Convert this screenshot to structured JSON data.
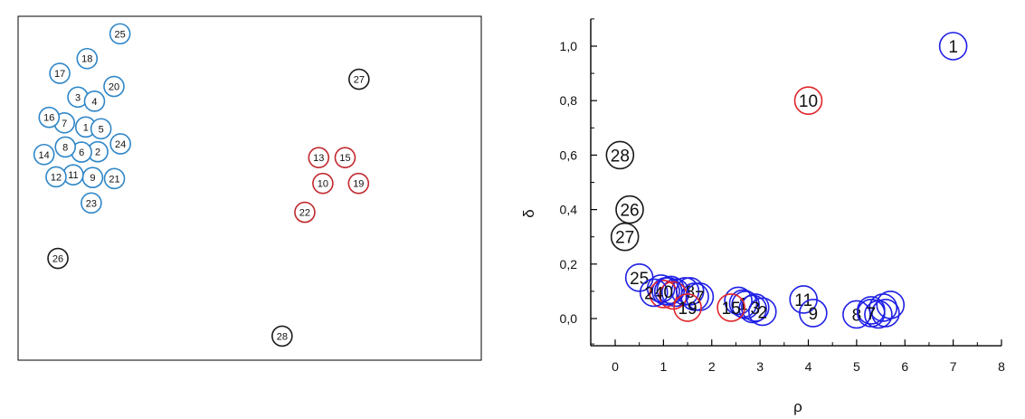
{
  "chart_data": [
    {
      "type": "scatter",
      "title": "",
      "xlabel": "",
      "ylabel": "",
      "grid": false,
      "legend": "none",
      "colors": {
        "blue": "#2e86c8",
        "red": "#c0282d",
        "black": "#1a1a1a"
      },
      "points": [
        {
          "label": "1",
          "x": 0.146,
          "y": 0.678,
          "cluster": "blue"
        },
        {
          "label": "2",
          "x": 0.172,
          "y": 0.606,
          "cluster": "blue"
        },
        {
          "label": "3",
          "x": 0.129,
          "y": 0.765,
          "cluster": "blue"
        },
        {
          "label": "4",
          "x": 0.165,
          "y": 0.753,
          "cluster": "blue"
        },
        {
          "label": "5",
          "x": 0.179,
          "y": 0.673,
          "cluster": "blue"
        },
        {
          "label": "6",
          "x": 0.137,
          "y": 0.605,
          "cluster": "blue"
        },
        {
          "label": "7",
          "x": 0.1,
          "y": 0.69,
          "cluster": "blue"
        },
        {
          "label": "8",
          "x": 0.102,
          "y": 0.62,
          "cluster": "blue"
        },
        {
          "label": "9",
          "x": 0.161,
          "y": 0.531,
          "cluster": "blue"
        },
        {
          "label": "10",
          "x": 0.658,
          "y": 0.514,
          "cluster": "red"
        },
        {
          "label": "11",
          "x": 0.119,
          "y": 0.539,
          "cluster": "blue"
        },
        {
          "label": "12",
          "x": 0.082,
          "y": 0.533,
          "cluster": "blue"
        },
        {
          "label": "13",
          "x": 0.649,
          "y": 0.589,
          "cluster": "red"
        },
        {
          "label": "14",
          "x": 0.056,
          "y": 0.598,
          "cluster": "blue"
        },
        {
          "label": "15",
          "x": 0.706,
          "y": 0.589,
          "cluster": "red"
        },
        {
          "label": "16",
          "x": 0.067,
          "y": 0.706,
          "cluster": "blue"
        },
        {
          "label": "17",
          "x": 0.09,
          "y": 0.834,
          "cluster": "blue"
        },
        {
          "label": "18",
          "x": 0.149,
          "y": 0.877,
          "cluster": "blue"
        },
        {
          "label": "19",
          "x": 0.735,
          "y": 0.514,
          "cluster": "red"
        },
        {
          "label": "20",
          "x": 0.207,
          "y": 0.796,
          "cluster": "blue"
        },
        {
          "label": "21",
          "x": 0.208,
          "y": 0.528,
          "cluster": "blue"
        },
        {
          "label": "22",
          "x": 0.619,
          "y": 0.43,
          "cluster": "red"
        },
        {
          "label": "23",
          "x": 0.158,
          "y": 0.457,
          "cluster": "blue"
        },
        {
          "label": "24",
          "x": 0.221,
          "y": 0.629,
          "cluster": "blue"
        },
        {
          "label": "25",
          "x": 0.22,
          "y": 0.949,
          "cluster": "blue"
        },
        {
          "label": "26",
          "x": 0.086,
          "y": 0.296,
          "cluster": "black"
        },
        {
          "label": "27",
          "x": 0.736,
          "y": 0.817,
          "cluster": "black"
        },
        {
          "label": "28",
          "x": 0.57,
          "y": 0.07,
          "cluster": "black"
        }
      ]
    },
    {
      "type": "scatter",
      "title": "",
      "xlabel": "ρ",
      "ylabel": "δ",
      "xlim": [
        -0.5,
        8
      ],
      "ylim": [
        -0.1,
        1.1
      ],
      "xticks": [
        "0",
        "1",
        "2",
        "3",
        "4",
        "5",
        "6",
        "7",
        "8"
      ],
      "xtick_values": [
        0,
        1,
        2,
        3,
        4,
        5,
        6,
        7,
        8
      ],
      "yticks": [
        "0,0",
        "0,2",
        "0,4",
        "0,6",
        "0,8",
        "1,0"
      ],
      "ytick_values": [
        0,
        0.2,
        0.4,
        0.6,
        0.8,
        1.0
      ],
      "grid": false,
      "legend": "none",
      "colors": {
        "blue": "#1f1fe6",
        "red": "#e0242a",
        "black": "#1a1a1a"
      },
      "points": [
        {
          "label": "",
          "x": 5.3,
          "y": 0.03,
          "cluster": "blue"
        },
        {
          "label": "",
          "x": 5.55,
          "y": 0.04,
          "cluster": "blue"
        },
        {
          "label": "",
          "x": 5.7,
          "y": 0.05,
          "cluster": "blue"
        },
        {
          "label": "",
          "x": 5.6,
          "y": 0.02,
          "cluster": "blue"
        },
        {
          "label": "",
          "x": 5.45,
          "y": 0.015,
          "cluster": "blue"
        },
        {
          "label": "",
          "x": 0.95,
          "y": 0.11,
          "cluster": "blue"
        },
        {
          "label": "",
          "x": 1.05,
          "y": 0.1,
          "cluster": "blue"
        },
        {
          "label": "",
          "x": 1.15,
          "y": 0.105,
          "cluster": "blue"
        },
        {
          "label": "",
          "x": 1.25,
          "y": 0.095,
          "cluster": "blue"
        },
        {
          "label": "",
          "x": 1.45,
          "y": 0.1,
          "cluster": "blue"
        },
        {
          "label": "",
          "x": 1.65,
          "y": 0.08,
          "cluster": "blue"
        },
        {
          "label": "",
          "x": 2.55,
          "y": 0.065,
          "cluster": "blue"
        },
        {
          "label": "",
          "x": 2.7,
          "y": 0.05,
          "cluster": "blue"
        },
        {
          "label": "",
          "x": 2.85,
          "y": 0.035,
          "cluster": "blue"
        },
        {
          "label": "",
          "x": 1.0,
          "y": 0.09,
          "cluster": "red"
        },
        {
          "label": "",
          "x": 1.2,
          "y": 0.085,
          "cluster": "red"
        },
        {
          "label": "25",
          "x": 0.5,
          "y": 0.15,
          "cluster": "blue"
        },
        {
          "label": "24",
          "x": 0.8,
          "y": 0.095,
          "cluster": "blue"
        },
        {
          "label": "0",
          "x": 1.1,
          "y": 0.1,
          "cluster": "blue"
        },
        {
          "label": "8",
          "x": 1.55,
          "y": 0.1,
          "cluster": "blue"
        },
        {
          "label": "7",
          "x": 1.75,
          "y": 0.08,
          "cluster": "blue"
        },
        {
          "label": "19",
          "x": 1.5,
          "y": 0.04,
          "cluster": "red"
        },
        {
          "label": "1",
          "x": 2.65,
          "y": 0.055,
          "cluster": "blue"
        },
        {
          "label": "3",
          "x": 2.9,
          "y": 0.04,
          "cluster": "blue"
        },
        {
          "label": "2",
          "x": 3.05,
          "y": 0.025,
          "cluster": "blue"
        },
        {
          "label": "15",
          "x": 2.4,
          "y": 0.04,
          "cluster": "red"
        },
        {
          "label": "11",
          "x": 3.9,
          "y": 0.07,
          "cluster": "blue"
        },
        {
          "label": "9",
          "x": 4.1,
          "y": 0.02,
          "cluster": "blue"
        },
        {
          "label": "8",
          "x": 5.0,
          "y": 0.015,
          "cluster": "blue"
        },
        {
          "label": "7",
          "x": 5.3,
          "y": 0.02,
          "cluster": "blue"
        },
        {
          "label": "10",
          "x": 4.0,
          "y": 0.8,
          "cluster": "red"
        },
        {
          "label": "1",
          "x": 7.0,
          "y": 1.0,
          "cluster": "blue"
        },
        {
          "label": "28",
          "x": 0.1,
          "y": 0.6,
          "cluster": "black"
        },
        {
          "label": "26",
          "x": 0.3,
          "y": 0.4,
          "cluster": "black"
        },
        {
          "label": "27",
          "x": 0.2,
          "y": 0.3,
          "cluster": "black"
        }
      ]
    }
  ]
}
